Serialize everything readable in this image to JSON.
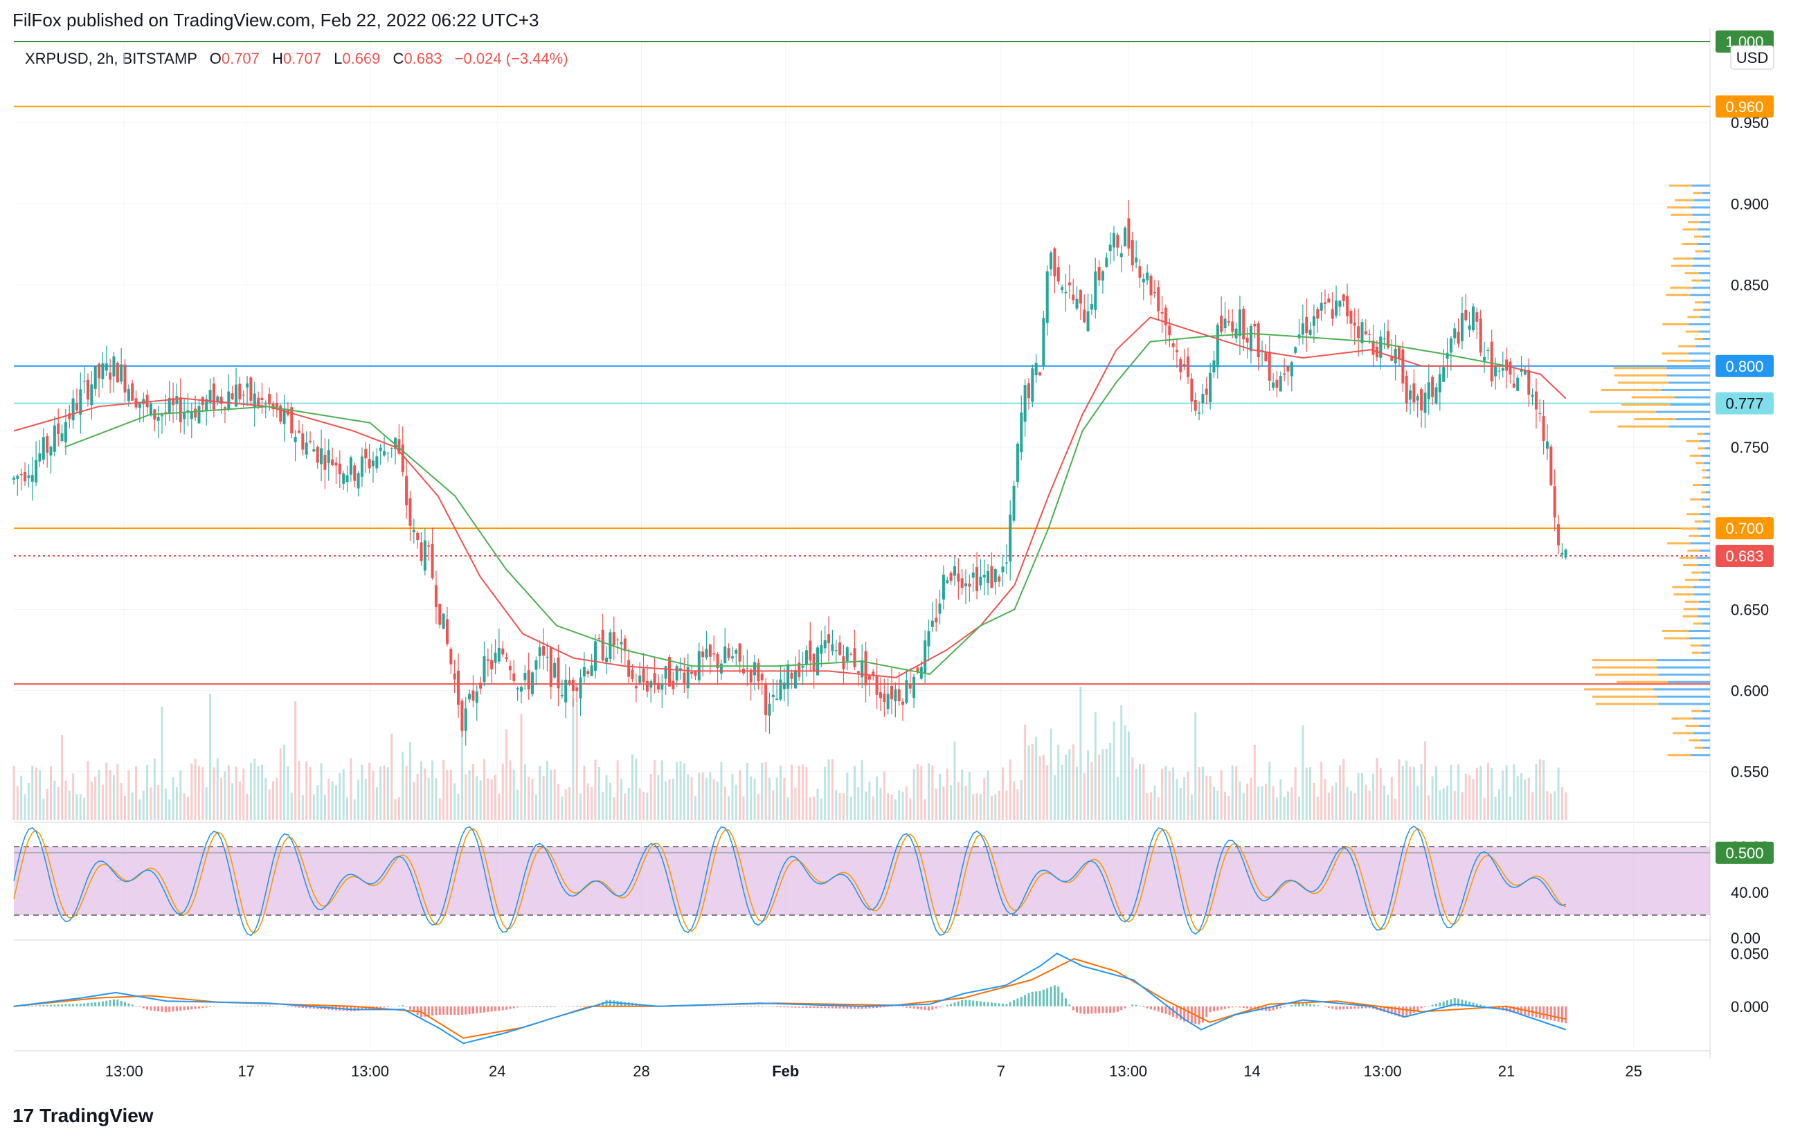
{
  "header": {
    "published": "FilFox published on TradingView.com, Feb 22, 2022 06:22 UTC+3"
  },
  "legend": {
    "symbol": "XRPUSD, 2h, BITSTAMP",
    "open_label": "O",
    "open": "0.707",
    "high_label": "H",
    "high": "0.707",
    "low_label": "L",
    "low": "0.669",
    "close_label": "C",
    "close": "0.683",
    "change": "−0.024 (−3.44%)"
  },
  "footer": {
    "brand": "TradingView",
    "brand_logo": "17"
  },
  "colors": {
    "up": "#26a69a",
    "down": "#ef5350",
    "ma_red": "#ef5350",
    "ma_green": "#4caf50",
    "blue_line": "#2196f3",
    "orange_line": "#ff9800",
    "cyan_line": "#80deea",
    "green_line": "#388e3c",
    "stoch_band": "#e1bee7"
  },
  "chart_data": {
    "type": "candlestick",
    "symbol": "XRPUSD",
    "interval": "2h",
    "currency": "USD",
    "ylim": [
      0.52,
      1.0
    ],
    "y_ticks": [
      "0.950",
      "0.900",
      "0.850",
      "0.800",
      "0.750",
      "0.650",
      "0.600",
      "0.550"
    ],
    "x_ticks": [
      "13:00",
      "17",
      "13:00",
      "24",
      "28",
      "Feb",
      "7",
      "13:00",
      "14",
      "13:00",
      "21",
      "25"
    ],
    "close_path": [
      [
        0.0,
        0.73
      ],
      [
        0.02,
        0.75
      ],
      [
        0.045,
        0.79
      ],
      [
        0.06,
        0.8
      ],
      [
        0.08,
        0.77
      ],
      [
        0.11,
        0.775
      ],
      [
        0.13,
        0.785
      ],
      [
        0.15,
        0.775
      ],
      [
        0.175,
        0.75
      ],
      [
        0.2,
        0.735
      ],
      [
        0.215,
        0.745
      ],
      [
        0.225,
        0.755
      ],
      [
        0.235,
        0.695
      ],
      [
        0.245,
        0.68
      ],
      [
        0.255,
        0.63
      ],
      [
        0.265,
        0.58
      ],
      [
        0.275,
        0.61
      ],
      [
        0.29,
        0.625
      ],
      [
        0.3,
        0.6
      ],
      [
        0.31,
        0.62
      ],
      [
        0.325,
        0.6
      ],
      [
        0.345,
        0.625
      ],
      [
        0.355,
        0.63
      ],
      [
        0.365,
        0.605
      ],
      [
        0.38,
        0.605
      ],
      [
        0.4,
        0.615
      ],
      [
        0.42,
        0.62
      ],
      [
        0.44,
        0.61
      ],
      [
        0.445,
        0.585
      ],
      [
        0.46,
        0.615
      ],
      [
        0.48,
        0.625
      ],
      [
        0.495,
        0.62
      ],
      [
        0.51,
        0.6
      ],
      [
        0.525,
        0.6
      ],
      [
        0.54,
        0.63
      ],
      [
        0.55,
        0.675
      ],
      [
        0.56,
        0.672
      ],
      [
        0.575,
        0.668
      ],
      [
        0.585,
        0.675
      ],
      [
        0.595,
        0.78
      ],
      [
        0.605,
        0.8
      ],
      [
        0.61,
        0.87
      ],
      [
        0.62,
        0.85
      ],
      [
        0.63,
        0.83
      ],
      [
        0.645,
        0.87
      ],
      [
        0.655,
        0.88
      ],
      [
        0.665,
        0.86
      ],
      [
        0.675,
        0.84
      ],
      [
        0.685,
        0.81
      ],
      [
        0.7,
        0.77
      ],
      [
        0.71,
        0.82
      ],
      [
        0.72,
        0.83
      ],
      [
        0.73,
        0.82
      ],
      [
        0.745,
        0.79
      ],
      [
        0.76,
        0.825
      ],
      [
        0.775,
        0.835
      ],
      [
        0.785,
        0.835
      ],
      [
        0.8,
        0.815
      ],
      [
        0.815,
        0.81
      ],
      [
        0.825,
        0.77
      ],
      [
        0.84,
        0.79
      ],
      [
        0.85,
        0.82
      ],
      [
        0.86,
        0.83
      ],
      [
        0.87,
        0.8
      ],
      [
        0.88,
        0.79
      ],
      [
        0.89,
        0.795
      ],
      [
        0.898,
        0.78
      ],
      [
        0.905,
        0.74
      ],
      [
        0.91,
        0.7
      ],
      [
        0.915,
        0.683
      ]
    ],
    "ma_red": [
      [
        0.0,
        0.76
      ],
      [
        0.05,
        0.775
      ],
      [
        0.1,
        0.78
      ],
      [
        0.15,
        0.775
      ],
      [
        0.2,
        0.76
      ],
      [
        0.225,
        0.75
      ],
      [
        0.25,
        0.72
      ],
      [
        0.275,
        0.67
      ],
      [
        0.3,
        0.635
      ],
      [
        0.33,
        0.62
      ],
      [
        0.36,
        0.615
      ],
      [
        0.4,
        0.612
      ],
      [
        0.44,
        0.612
      ],
      [
        0.48,
        0.612
      ],
      [
        0.52,
        0.608
      ],
      [
        0.55,
        0.625
      ],
      [
        0.57,
        0.64
      ],
      [
        0.59,
        0.665
      ],
      [
        0.61,
        0.72
      ],
      [
        0.63,
        0.77
      ],
      [
        0.65,
        0.81
      ],
      [
        0.67,
        0.83
      ],
      [
        0.7,
        0.82
      ],
      [
        0.73,
        0.81
      ],
      [
        0.76,
        0.805
      ],
      [
        0.8,
        0.81
      ],
      [
        0.83,
        0.8
      ],
      [
        0.86,
        0.8
      ],
      [
        0.88,
        0.8
      ],
      [
        0.9,
        0.795
      ],
      [
        0.915,
        0.78
      ]
    ],
    "ma_green": [
      [
        0.03,
        0.75
      ],
      [
        0.08,
        0.77
      ],
      [
        0.15,
        0.775
      ],
      [
        0.21,
        0.765
      ],
      [
        0.26,
        0.72
      ],
      [
        0.29,
        0.675
      ],
      [
        0.32,
        0.64
      ],
      [
        0.36,
        0.625
      ],
      [
        0.4,
        0.615
      ],
      [
        0.45,
        0.615
      ],
      [
        0.5,
        0.618
      ],
      [
        0.54,
        0.61
      ],
      [
        0.57,
        0.64
      ],
      [
        0.59,
        0.65
      ],
      [
        0.61,
        0.7
      ],
      [
        0.63,
        0.76
      ],
      [
        0.65,
        0.79
      ],
      [
        0.67,
        0.815
      ],
      [
        0.7,
        0.818
      ],
      [
        0.73,
        0.82
      ],
      [
        0.76,
        0.818
      ],
      [
        0.8,
        0.815
      ],
      [
        0.84,
        0.808
      ],
      [
        0.88,
        0.8
      ]
    ],
    "horizontal_levels": [
      {
        "value": 1.0,
        "label": "1.000",
        "color": "#388e3c"
      },
      {
        "value": 0.96,
        "label": "0.960",
        "color": "#ff9800"
      },
      {
        "value": 0.8,
        "label": "0.800",
        "color": "#2196f3"
      },
      {
        "value": 0.777,
        "label": "0.777",
        "color": "#80deea"
      },
      {
        "value": 0.7,
        "label": "0.700",
        "color": "#ff9800"
      },
      {
        "value": 0.683,
        "label": "0.683",
        "color": "#ef5350"
      },
      {
        "value": 0.604,
        "label": "",
        "color": "#ef5350"
      },
      {
        "value": 0.5,
        "label": "0.500",
        "color": "#388e3c"
      }
    ],
    "stoch_rsi": {
      "ylim": [
        0,
        100
      ],
      "y_ticks": [
        "80.00",
        "40.00",
        "0.00"
      ],
      "band": [
        20,
        80
      ],
      "k_color": "#2196f3",
      "d_color": "#ff9800"
    },
    "macd": {
      "ylim": [
        -0.04,
        0.06
      ],
      "y_ticks": [
        "0.050",
        "0.000"
      ],
      "macd_path": [
        [
          0.0,
          0.0
        ],
        [
          0.04,
          0.008
        ],
        [
          0.06,
          0.013
        ],
        [
          0.09,
          0.005
        ],
        [
          0.15,
          0.003
        ],
        [
          0.2,
          -0.003
        ],
        [
          0.23,
          -0.003
        ],
        [
          0.25,
          -0.02
        ],
        [
          0.265,
          -0.035
        ],
        [
          0.29,
          -0.025
        ],
        [
          0.32,
          -0.01
        ],
        [
          0.35,
          0.004
        ],
        [
          0.38,
          0.0
        ],
        [
          0.44,
          0.003
        ],
        [
          0.5,
          0.0
        ],
        [
          0.54,
          0.002
        ],
        [
          0.56,
          0.012
        ],
        [
          0.585,
          0.02
        ],
        [
          0.605,
          0.038
        ],
        [
          0.615,
          0.05
        ],
        [
          0.63,
          0.038
        ],
        [
          0.66,
          0.025
        ],
        [
          0.69,
          -0.012
        ],
        [
          0.7,
          -0.022
        ],
        [
          0.72,
          -0.008
        ],
        [
          0.76,
          0.006
        ],
        [
          0.8,
          0.0
        ],
        [
          0.82,
          -0.01
        ],
        [
          0.85,
          0.002
        ],
        [
          0.88,
          -0.003
        ],
        [
          0.915,
          -0.022
        ]
      ],
      "signal_path": [
        [
          0.0,
          0.0
        ],
        [
          0.05,
          0.008
        ],
        [
          0.08,
          0.01
        ],
        [
          0.12,
          0.004
        ],
        [
          0.2,
          0.0
        ],
        [
          0.24,
          -0.005
        ],
        [
          0.265,
          -0.03
        ],
        [
          0.3,
          -0.02
        ],
        [
          0.34,
          0.0
        ],
        [
          0.38,
          0.0
        ],
        [
          0.45,
          0.003
        ],
        [
          0.52,
          0.001
        ],
        [
          0.56,
          0.008
        ],
        [
          0.6,
          0.025
        ],
        [
          0.625,
          0.045
        ],
        [
          0.65,
          0.033
        ],
        [
          0.68,
          0.005
        ],
        [
          0.705,
          -0.015
        ],
        [
          0.74,
          0.002
        ],
        [
          0.78,
          0.005
        ],
        [
          0.83,
          -0.005
        ],
        [
          0.88,
          0.0
        ],
        [
          0.915,
          -0.012
        ]
      ]
    }
  }
}
